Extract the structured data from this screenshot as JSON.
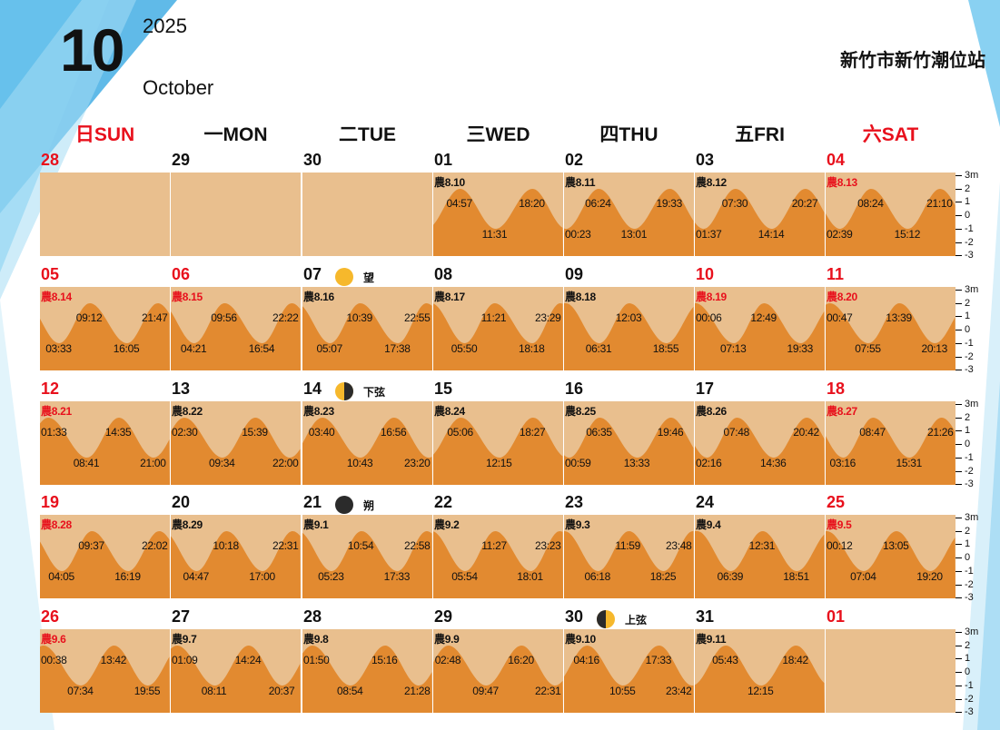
{
  "header": {
    "month_number": "10",
    "year": "2025",
    "month_name": "October",
    "station": "新竹市新竹潮位站"
  },
  "colors": {
    "water": "#e28a30",
    "sky": "#e9bf8e",
    "holiday": "#e8101c",
    "decor": "#4fb3e6"
  },
  "weekdays": [
    {
      "label": "日SUN",
      "holiday": true
    },
    {
      "label": "一MON",
      "holiday": false
    },
    {
      "label": "二TUE",
      "holiday": false
    },
    {
      "label": "三WED",
      "holiday": false
    },
    {
      "label": "四THU",
      "holiday": false
    },
    {
      "label": "五FRI",
      "holiday": false
    },
    {
      "label": "六SAT",
      "holiday": true
    }
  ],
  "scale_labels": [
    "3m",
    "2",
    "1",
    "0",
    "-1",
    "-2",
    "-3"
  ],
  "days": [
    {
      "day": "28",
      "holiday": true,
      "empty": true
    },
    {
      "day": "29",
      "empty": true
    },
    {
      "day": "30",
      "empty": true
    },
    {
      "day": "01",
      "lunar": "農8.10",
      "highs": [
        "04:57",
        "18:20"
      ],
      "lows": [
        "11:31"
      ]
    },
    {
      "day": "02",
      "lunar": "農8.11",
      "highs": [
        "06:24",
        "19:33"
      ],
      "lows": [
        "00:23",
        "13:01"
      ]
    },
    {
      "day": "03",
      "lunar": "農8.12",
      "highs": [
        "07:30",
        "20:27"
      ],
      "lows": [
        "01:37",
        "14:14"
      ]
    },
    {
      "day": "04",
      "holiday": true,
      "lunar": "農8.13",
      "highs": [
        "08:24",
        "21:10"
      ],
      "lows": [
        "02:39",
        "15:12"
      ]
    },
    {
      "day": "05",
      "holiday": true,
      "lunar": "農8.14",
      "highs": [
        "09:12",
        "21:47"
      ],
      "lows": [
        "03:33",
        "16:05"
      ]
    },
    {
      "day": "06",
      "holiday": true,
      "lunar": "農8.15",
      "highs": [
        "09:56",
        "22:22"
      ],
      "lows": [
        "04:21",
        "16:54"
      ]
    },
    {
      "day": "07",
      "lunar": "農8.16",
      "highs": [
        "10:39",
        "22:55"
      ],
      "lows": [
        "05:07",
        "17:38"
      ],
      "moon": "full",
      "moon_label": "望"
    },
    {
      "day": "08",
      "lunar": "農8.17",
      "highs": [
        "11:21",
        "23:29"
      ],
      "lows": [
        "05:50",
        "18:18"
      ]
    },
    {
      "day": "09",
      "lunar": "農8.18",
      "highs": [
        "12:03"
      ],
      "lows": [
        "06:31",
        "18:55"
      ]
    },
    {
      "day": "10",
      "holiday": true,
      "lunar": "農8.19",
      "highs": [
        "00:06",
        "12:49"
      ],
      "lows": [
        "07:13",
        "19:33"
      ]
    },
    {
      "day": "11",
      "holiday": true,
      "lunar": "農8.20",
      "highs": [
        "00:47",
        "13:39"
      ],
      "lows": [
        "07:55",
        "20:13"
      ]
    },
    {
      "day": "12",
      "holiday": true,
      "lunar": "農8.21",
      "highs": [
        "01:33",
        "14:35"
      ],
      "lows": [
        "08:41",
        "21:00"
      ]
    },
    {
      "day": "13",
      "lunar": "農8.22",
      "highs": [
        "02:30",
        "15:39"
      ],
      "lows": [
        "09:34",
        "22:00"
      ]
    },
    {
      "day": "14",
      "lunar": "農8.23",
      "highs": [
        "03:40",
        "16:56"
      ],
      "lows": [
        "10:43",
        "23:20"
      ],
      "moon": "last",
      "moon_label": "下弦"
    },
    {
      "day": "15",
      "lunar": "農8.24",
      "highs": [
        "05:06",
        "18:27"
      ],
      "lows": [
        "12:15"
      ]
    },
    {
      "day": "16",
      "lunar": "農8.25",
      "highs": [
        "06:35",
        "19:46"
      ],
      "lows": [
        "00:59",
        "13:33"
      ]
    },
    {
      "day": "17",
      "lunar": "農8.26",
      "highs": [
        "07:48",
        "20:42"
      ],
      "lows": [
        "02:16",
        "14:36"
      ]
    },
    {
      "day": "18",
      "holiday": true,
      "lunar": "農8.27",
      "highs": [
        "08:47",
        "21:26"
      ],
      "lows": [
        "03:16",
        "15:31"
      ]
    },
    {
      "day": "19",
      "holiday": true,
      "lunar": "農8.28",
      "highs": [
        "09:37",
        "22:02"
      ],
      "lows": [
        "04:05",
        "16:19"
      ]
    },
    {
      "day": "20",
      "lunar": "農8.29",
      "highs": [
        "10:18",
        "22:31"
      ],
      "lows": [
        "04:47",
        "17:00"
      ]
    },
    {
      "day": "21",
      "lunar": "農9.1",
      "highs": [
        "10:54",
        "22:58"
      ],
      "lows": [
        "05:23",
        "17:33"
      ],
      "moon": "new",
      "moon_label": "朔"
    },
    {
      "day": "22",
      "lunar": "農9.2",
      "highs": [
        "11:27",
        "23:23"
      ],
      "lows": [
        "05:54",
        "18:01"
      ]
    },
    {
      "day": "23",
      "lunar": "農9.3",
      "highs": [
        "11:59",
        "23:48"
      ],
      "lows": [
        "06:18",
        "18:25"
      ]
    },
    {
      "day": "24",
      "lunar": "農9.4",
      "highs": [
        "12:31"
      ],
      "lows": [
        "06:39",
        "18:51"
      ]
    },
    {
      "day": "25",
      "holiday": true,
      "lunar": "農9.5",
      "highs": [
        "00:12",
        "13:05"
      ],
      "lows": [
        "07:04",
        "19:20"
      ]
    },
    {
      "day": "26",
      "holiday": true,
      "lunar": "農9.6",
      "highs": [
        "00:38",
        "13:42"
      ],
      "lows": [
        "07:34",
        "19:55"
      ]
    },
    {
      "day": "27",
      "lunar": "農9.7",
      "highs": [
        "01:09",
        "14:24"
      ],
      "lows": [
        "08:11",
        "20:37"
      ]
    },
    {
      "day": "28",
      "lunar": "農9.8",
      "highs": [
        "01:50",
        "15:16"
      ],
      "lows": [
        "08:54",
        "21:28"
      ]
    },
    {
      "day": "29",
      "lunar": "農9.9",
      "highs": [
        "02:48",
        "16:20"
      ],
      "lows": [
        "09:47",
        "22:31"
      ]
    },
    {
      "day": "30",
      "lunar": "農9.10",
      "highs": [
        "04:16",
        "17:33"
      ],
      "lows": [
        "10:55",
        "23:42"
      ],
      "moon": "first",
      "moon_label": "上弦"
    },
    {
      "day": "31",
      "lunar": "農9.11",
      "highs": [
        "05:43",
        "18:42"
      ],
      "lows": [
        "12:15"
      ]
    },
    {
      "day": "01",
      "holiday": true,
      "empty": true
    }
  ]
}
